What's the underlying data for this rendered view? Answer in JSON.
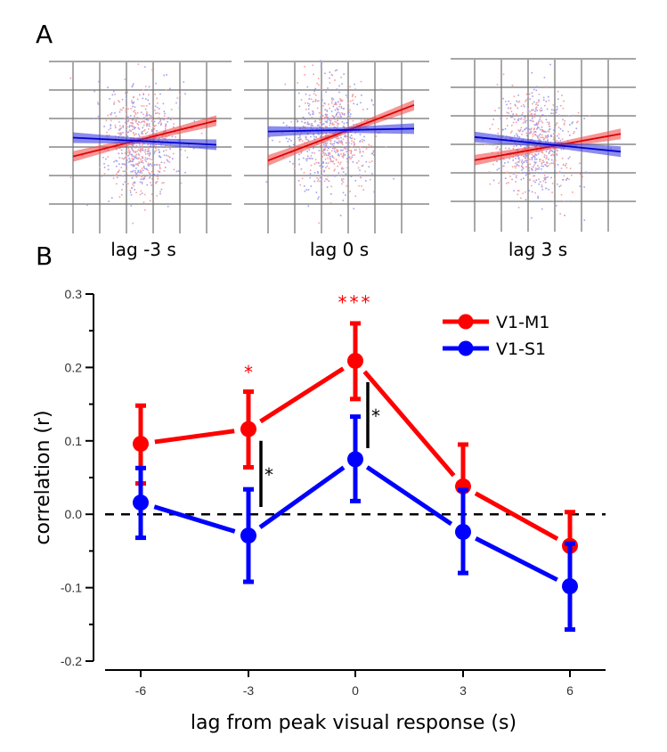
{
  "panel_a": {
    "label": "A",
    "grid_color": "#707070",
    "point_colors": {
      "V1-M1": "#f5a0a0",
      "V1-S1": "#a0a0f0"
    },
    "plots": [
      {
        "caption": "lag -3 s",
        "red_slope": 0.25,
        "blue_slope": -0.05,
        "red_intercept": 0.15,
        "blue_intercept": 0.05
      },
      {
        "caption": "lag 0 s",
        "red_slope": 0.38,
        "blue_slope": 0.02,
        "red_intercept": 0.1,
        "blue_intercept": 0.2
      },
      {
        "caption": "lag 3 s",
        "red_slope": 0.18,
        "blue_slope": -0.1,
        "red_intercept": -0.1,
        "blue_intercept": 0.0
      }
    ]
  },
  "panel_b": {
    "label": "B"
  },
  "chart_data": {
    "type": "line",
    "title": "",
    "xlabel": "lag from peak visual response (s)",
    "ylabel": "correlation (r)",
    "x": [
      -6,
      -3,
      0,
      3,
      6
    ],
    "xticks": [
      "-6",
      "-3",
      "0",
      "3",
      "6"
    ],
    "xlim": [
      -7,
      7
    ],
    "ylim": [
      -0.2,
      0.3
    ],
    "yticks": [
      "0.3",
      "0.2",
      "0.1",
      "0.0",
      "-0.1",
      "-0.2"
    ],
    "ytick_values": [
      0.3,
      0.2,
      0.1,
      0.0,
      -0.1,
      -0.2
    ],
    "reference_line": {
      "y": 0.0,
      "style": "dashed",
      "color": "#000000"
    },
    "legend": {
      "placement": "top-right",
      "entries": [
        "V1-M1",
        "V1-S1"
      ]
    },
    "series": [
      {
        "name": "V1-M1",
        "color": "#ff0000",
        "values": [
          0.096,
          0.116,
          0.209,
          0.038,
          -0.043
        ],
        "err_low": [
          0.042,
          0.064,
          0.157,
          -0.02,
          -0.093
        ],
        "err_high": [
          0.148,
          0.167,
          0.26,
          0.095,
          0.003
        ]
      },
      {
        "name": "V1-S1",
        "color": "#0000ff",
        "values": [
          0.016,
          -0.029,
          0.075,
          -0.024,
          -0.098
        ],
        "err_low": [
          -0.032,
          -0.092,
          0.018,
          -0.08,
          -0.157
        ],
        "err_high": [
          0.063,
          0.034,
          0.133,
          0.033,
          -0.04
        ]
      }
    ],
    "annotations": [
      {
        "text": "*",
        "x": -3,
        "y": 0.185,
        "color": "#ff0000",
        "kind": "above-series"
      },
      {
        "text": "***",
        "x": 0,
        "y": 0.28,
        "color": "#ff0000",
        "kind": "above-series"
      },
      {
        "text": "*",
        "x": -3,
        "y_range": [
          0.01,
          0.1
        ],
        "color": "#000000",
        "kind": "between-series"
      },
      {
        "text": "*",
        "x": 0,
        "y_range": [
          0.09,
          0.18
        ],
        "color": "#000000",
        "kind": "between-series"
      }
    ]
  }
}
